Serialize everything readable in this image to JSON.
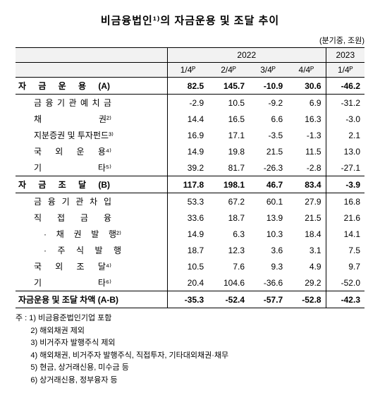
{
  "title": "비금융법인¹⁾의 자금운용 및 조달 추이",
  "unit": "(분기중, 조원)",
  "year1": "2022",
  "year2": "2023",
  "cols": {
    "c1": "1/4ᴾ",
    "c2": "2/4ᴾ",
    "c3": "3/4ᴾ",
    "c4": "4/4ᴾ",
    "c5": "1/4ᴾ"
  },
  "sectionA": {
    "label": "자 금 운 용 (A)",
    "v": [
      "82.5",
      "145.7",
      "-10.9",
      "30.6",
      "-46.2"
    ]
  },
  "rowsA": [
    {
      "label": "금 융 기 관 예 치 금",
      "v": [
        "-2.9",
        "10.5",
        "-9.2",
        "6.9",
        "-31.2"
      ]
    },
    {
      "label": "채 권²⁾",
      "v": [
        "14.4",
        "16.5",
        "6.6",
        "16.3",
        "-3.0"
      ]
    },
    {
      "label": "지분증권 및 투자펀드³⁾",
      "v": [
        "16.9",
        "17.1",
        "-3.5",
        "-1.3",
        "2.1"
      ]
    },
    {
      "label": "국 외 운 용⁴⁾",
      "v": [
        "14.9",
        "19.8",
        "21.5",
        "11.5",
        "13.0"
      ]
    },
    {
      "label": "기 타⁵⁾",
      "v": [
        "39.2",
        "81.7",
        "-26.3",
        "-2.8",
        "-27.1"
      ]
    }
  ],
  "sectionB": {
    "label": "자 금 조 달 (B)",
    "v": [
      "117.8",
      "198.1",
      "46.7",
      "83.4",
      "-3.9"
    ]
  },
  "rowsB": [
    {
      "label": "금 융 기 관 차 입",
      "indent": 1,
      "v": [
        "53.3",
        "67.2",
        "60.1",
        "27.9",
        "16.8"
      ]
    },
    {
      "label": "직 접 금 융",
      "indent": 1,
      "v": [
        "33.6",
        "18.7",
        "13.9",
        "21.5",
        "21.6"
      ]
    },
    {
      "label": "· 채 권 발 행²⁾",
      "indent": 2,
      "v": [
        "14.9",
        "6.3",
        "10.3",
        "18.4",
        "14.1"
      ]
    },
    {
      "label": "· 주 식 발 행",
      "indent": 2,
      "v": [
        "18.7",
        "12.3",
        "3.6",
        "3.1",
        "7.5"
      ]
    },
    {
      "label": "국 외 조 달⁴⁾",
      "indent": 1,
      "v": [
        "10.5",
        "7.6",
        "9.3",
        "4.9",
        "9.7"
      ]
    },
    {
      "label": "기 타⁶⁾",
      "indent": 1,
      "v": [
        "20.4",
        "104.6",
        "-36.6",
        "29.2",
        "-52.0"
      ]
    }
  ],
  "diff": {
    "label": "자금운용 및 조달 차액 (A-B)",
    "v": [
      "-35.3",
      "-52.4",
      "-57.7",
      "-52.8",
      "-42.3"
    ]
  },
  "footPrefix": "주 : ",
  "footnotes": [
    "1) 비금융준법인기업 포함",
    "2) 해외채권 제외",
    "3) 비거주자 발행주식 제외",
    "4) 해외채권, 비거주자 발행주식, 직접투자, 기타대외채권·채무",
    "5) 현금, 상거래신용, 미수금 등",
    "6) 상거래신용, 정부융자 등"
  ]
}
